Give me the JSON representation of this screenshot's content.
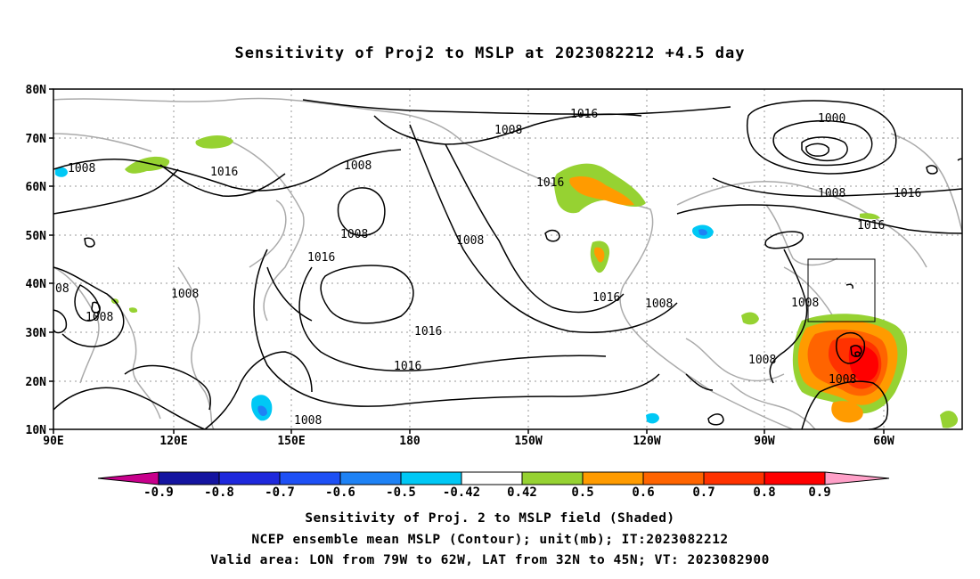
{
  "title": "Sensitivity of Proj2 to MSLP at 2023082212 +4.5 day",
  "lat_labels": [
    "80N",
    "70N",
    "60N",
    "50N",
    "40N",
    "30N",
    "20N",
    "10N"
  ],
  "lon_labels": [
    "90E",
    "120E",
    "150E",
    "180",
    "150W",
    "120W",
    "90W",
    "60W"
  ],
  "colorbar": {
    "labels": [
      "-0.9",
      "-0.8",
      "-0.7",
      "-0.6",
      "-0.5",
      "-0.42",
      "0.42",
      "0.5",
      "0.6",
      "0.7",
      "0.8",
      "0.9"
    ],
    "colors": [
      "#c8008c",
      "#1414a0",
      "#1e28dc",
      "#1e50f5",
      "#1e82f5",
      "#00c8f5",
      "#ffffff",
      "#96d232",
      "#ff9b00",
      "#ff6400",
      "#ff3200",
      "#ff0000",
      "#ffa0c8"
    ]
  },
  "contour_labels": [
    "1016",
    "1008",
    "1008",
    "1016",
    "1008",
    "1016",
    "1000",
    "1008",
    "1016",
    "1008",
    "1016",
    "1008",
    "1016",
    "1008",
    "1016",
    "1016",
    "1016",
    "1008",
    "1008",
    "1008",
    "1008",
    "1008",
    "1008",
    "08"
  ],
  "captions": [
    "Sensitivity of Proj. 2 to MSLP field (Shaded)",
    "NCEP ensemble mean MSLP (Contour); unit(mb); IT:2023082212",
    "Valid area: LON from 79W to 62W, LAT from 32N to 45N; VT: 2023082900"
  ]
}
